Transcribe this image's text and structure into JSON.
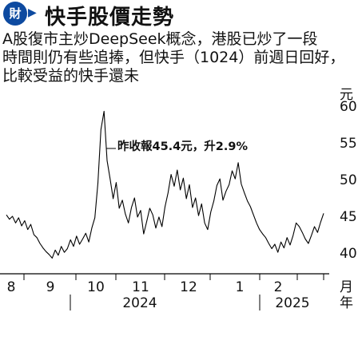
{
  "header": {
    "logo_glyph": "財",
    "section_title": "快手股價走勢"
  },
  "body_text": [
    "A股復市主炒DeepSeek概念，港股已炒了一段",
    "時間則仍有些追捧，但快手（1024）前週日回好，",
    "比較受益的快手還未"
  ],
  "callout": "昨收報45.4元，升2.9%",
  "colors": {
    "line": "#000000",
    "axis": "#000000",
    "brand": "#0d4aa0"
  },
  "chart_data": {
    "type": "line",
    "title": "",
    "ylabel": "元",
    "ylim": [
      37,
      63
    ],
    "yticks": [
      "60",
      "55",
      "50",
      "45",
      "40"
    ],
    "x_month_labels": [
      "8",
      "9",
      "10",
      "11",
      "12",
      "1",
      "2"
    ],
    "x_year_labels": [
      "2024",
      "2025"
    ],
    "x_unit_label": "月",
    "x_year_unit_label": "年",
    "series": [
      {
        "values": [
          45.2,
          44.6,
          45.0,
          44.1,
          44.8,
          43.7,
          44.4,
          43.2,
          43.9,
          42.5,
          42.1,
          41.3,
          40.7,
          40.2,
          39.8,
          39.3,
          40.4,
          39.7,
          40.9,
          40.1,
          40.6,
          41.8,
          40.9,
          42.3,
          41.2,
          41.9,
          42.7,
          41.5,
          43.4,
          44.8,
          49.5,
          56.8,
          59.3,
          52.6,
          50.1,
          47.4,
          49.6,
          46.1,
          47.2,
          45.3,
          44.1,
          46.2,
          47.5,
          44.9,
          45.8,
          42.6,
          44.3,
          46.1,
          45.2,
          43.4,
          44.9,
          43.6,
          46.3,
          48.2,
          50.7,
          49.1,
          51.3,
          48.6,
          50.2,
          47.4,
          49.3,
          46.2,
          47.5,
          45.1,
          46.7,
          44.1,
          43.2,
          45.6,
          47.1,
          49.2,
          50.1,
          47.2,
          48.4,
          49.3,
          51.2,
          50.1,
          52.3,
          49.4,
          48.2,
          47.1,
          46.3,
          45.2,
          44.1,
          43.2,
          42.6,
          42.1,
          41.3,
          40.6,
          41.2,
          40.1,
          41.5,
          40.7,
          42.1,
          41.1,
          42.4,
          44.1,
          43.6,
          42.8,
          41.9,
          41.3,
          42.4,
          43.6,
          42.8,
          44.2,
          45.4
        ]
      }
    ]
  }
}
